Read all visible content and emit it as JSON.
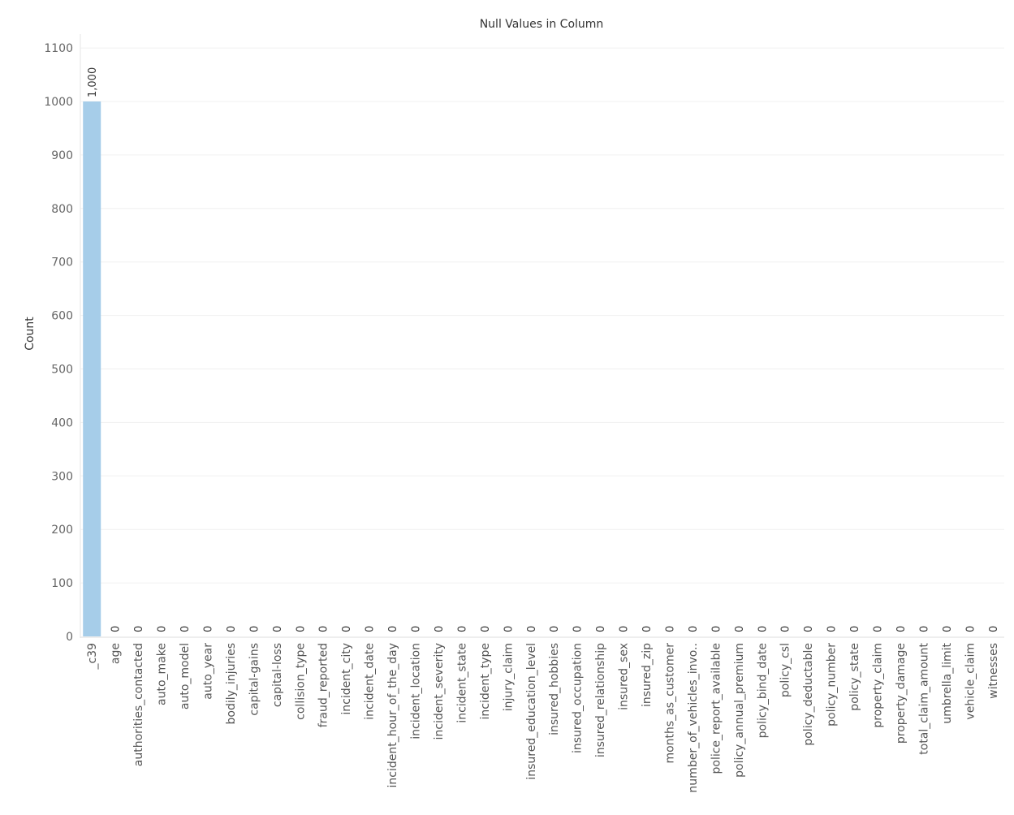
{
  "chart_data": {
    "type": "bar",
    "title": "Null Values in Column",
    "xlabel": "",
    "ylabel": "Count",
    "ylim": [
      0,
      1100
    ],
    "yticks": [
      0,
      100,
      200,
      300,
      400,
      500,
      600,
      700,
      800,
      900,
      1000,
      1100
    ],
    "grid": true,
    "categories": [
      "_c39",
      "age",
      "authorities_contacted",
      "auto_make",
      "auto_model",
      "auto_year",
      "bodily_injuries",
      "capital-gains",
      "capital-loss",
      "collision_type",
      "fraud_reported",
      "incident_city",
      "incident_date",
      "incident_hour_of_the_day",
      "incident_location",
      "incident_severity",
      "incident_state",
      "incident_type",
      "injury_claim",
      "insured_education_level",
      "insured_hobbies",
      "insured_occupation",
      "insured_relationship",
      "insured_sex",
      "insured_zip",
      "months_as_customer",
      "number_of_vehicles_invo..",
      "police_report_available",
      "policy_annual_premium",
      "policy_bind_date",
      "policy_csl",
      "policy_deductable",
      "policy_number",
      "policy_state",
      "property_claim",
      "property_damage",
      "total_claim_amount",
      "umbrella_limit",
      "vehicle_claim",
      "witnesses"
    ],
    "values": [
      1000,
      0,
      0,
      0,
      0,
      0,
      0,
      0,
      0,
      0,
      0,
      0,
      0,
      0,
      0,
      0,
      0,
      0,
      0,
      0,
      0,
      0,
      0,
      0,
      0,
      0,
      0,
      0,
      0,
      0,
      0,
      0,
      0,
      0,
      0,
      0,
      0,
      0,
      0,
      0
    ],
    "data_labels": [
      "1,000",
      "0",
      "0",
      "0",
      "0",
      "0",
      "0",
      "0",
      "0",
      "0",
      "0",
      "0",
      "0",
      "0",
      "0",
      "0",
      "0",
      "0",
      "0",
      "0",
      "0",
      "0",
      "0",
      "0",
      "0",
      "0",
      "0",
      "0",
      "0",
      "0",
      "0",
      "0",
      "0",
      "0",
      "0",
      "0",
      "0",
      "0",
      "0",
      "0"
    ],
    "bar_color": "#a6cde9",
    "grid_color": "#f0f0f0"
  }
}
